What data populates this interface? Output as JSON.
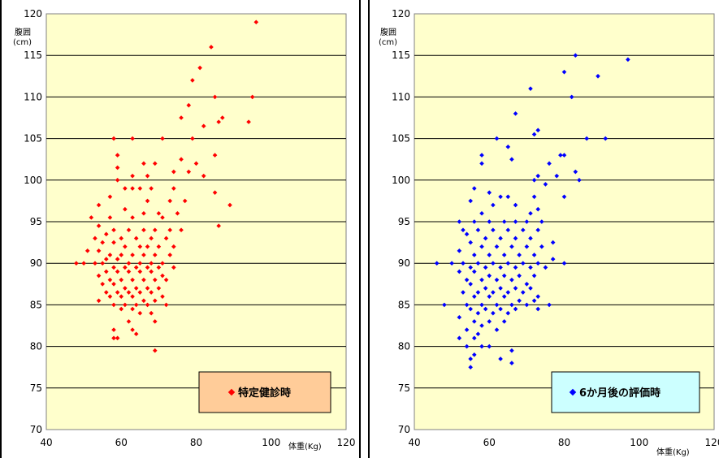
{
  "chart_data": [
    {
      "type": "scatter",
      "ylabel": "腹囲",
      "yunit": "(cm)",
      "xlabel": "体重(Kg)",
      "xlim": [
        40,
        120
      ],
      "ylim": [
        70,
        120
      ],
      "xticks": [
        "40",
        "60",
        "80",
        "100",
        "120"
      ],
      "yticks": [
        "70",
        "75",
        "80",
        "85",
        "90",
        "95",
        "100",
        "105",
        "110",
        "115",
        "120"
      ],
      "plot_background": "#FFFFCC",
      "grid": "horizontal",
      "legend_placement": "bottom-right",
      "legend_background": "#FFCC99",
      "series": [
        {
          "name": "特定健診時",
          "color": "#FF0000",
          "points": [
            [
              96,
              119
            ],
            [
              84,
              116
            ],
            [
              81,
              113.5
            ],
            [
              79,
              112
            ],
            [
              85,
              110
            ],
            [
              95,
              110
            ],
            [
              78,
              109
            ],
            [
              87,
              107.5
            ],
            [
              76,
              107.5
            ],
            [
              86,
              107
            ],
            [
              94,
              107
            ],
            [
              82,
              106.5
            ],
            [
              58,
              105
            ],
            [
              63,
              105
            ],
            [
              71,
              105
            ],
            [
              79,
              105
            ],
            [
              85,
              103
            ],
            [
              59,
              103
            ],
            [
              76,
              102.5
            ],
            [
              66,
              102
            ],
            [
              69,
              102
            ],
            [
              80,
              102
            ],
            [
              59,
              101.5
            ],
            [
              74,
              101
            ],
            [
              78,
              101
            ],
            [
              63,
              100.5
            ],
            [
              67,
              100.5
            ],
            [
              82,
              100.5
            ],
            [
              59,
              100
            ],
            [
              61,
              99
            ],
            [
              63,
              99
            ],
            [
              65,
              99
            ],
            [
              68,
              99
            ],
            [
              74,
              99
            ],
            [
              85,
              98.5
            ],
            [
              57,
              98
            ],
            [
              67,
              97.5
            ],
            [
              73,
              97.5
            ],
            [
              77,
              97.5
            ],
            [
              89,
              97
            ],
            [
              54,
              97
            ],
            [
              61,
              96.5
            ],
            [
              66,
              96
            ],
            [
              70,
              96
            ],
            [
              75,
              96
            ],
            [
              52,
              95.5
            ],
            [
              57,
              95.5
            ],
            [
              63,
              95.5
            ],
            [
              71,
              95.5
            ],
            [
              86,
              94.5
            ],
            [
              54,
              94.5
            ],
            [
              58,
              94
            ],
            [
              62,
              94
            ],
            [
              66,
              94
            ],
            [
              69,
              94
            ],
            [
              73,
              94
            ],
            [
              76,
              94
            ],
            [
              56,
              93.5
            ],
            [
              60,
              93
            ],
            [
              64,
              93
            ],
            [
              68,
              93
            ],
            [
              72,
              93
            ],
            [
              53,
              93
            ],
            [
              55,
              92.5
            ],
            [
              58,
              92.5
            ],
            [
              61,
              92
            ],
            [
              65,
              92
            ],
            [
              67,
              92
            ],
            [
              70,
              92
            ],
            [
              74,
              92
            ],
            [
              51,
              91.5
            ],
            [
              54,
              91.5
            ],
            [
              57,
              91
            ],
            [
              60,
              91
            ],
            [
              63,
              91
            ],
            [
              66,
              91
            ],
            [
              69,
              91
            ],
            [
              73,
              91
            ],
            [
              56,
              90.5
            ],
            [
              59,
              90.5
            ],
            [
              62,
              90
            ],
            [
              65,
              90
            ],
            [
              68,
              90
            ],
            [
              71,
              90
            ],
            [
              48,
              90
            ],
            [
              50,
              90
            ],
            [
              53,
              90
            ],
            [
              55,
              90
            ],
            [
              58,
              89.5
            ],
            [
              61,
              89.5
            ],
            [
              64,
              89.5
            ],
            [
              67,
              89.5
            ],
            [
              70,
              89.5
            ],
            [
              74,
              89.5
            ],
            [
              56,
              89
            ],
            [
              59,
              89
            ],
            [
              62,
              89
            ],
            [
              65,
              89
            ],
            [
              68,
              89
            ],
            [
              71,
              88.5
            ],
            [
              54,
              88.5
            ],
            [
              57,
              88
            ],
            [
              60,
              88
            ],
            [
              63,
              88
            ],
            [
              66,
              88
            ],
            [
              69,
              88
            ],
            [
              72,
              88
            ],
            [
              55,
              87.5
            ],
            [
              58,
              87.5
            ],
            [
              61,
              87
            ],
            [
              64,
              87
            ],
            [
              67,
              87
            ],
            [
              70,
              87
            ],
            [
              56,
              86.5
            ],
            [
              59,
              86.5
            ],
            [
              62,
              86.5
            ],
            [
              65,
              86.5
            ],
            [
              68,
              86.5
            ],
            [
              71,
              86
            ],
            [
              57,
              86
            ],
            [
              60,
              86
            ],
            [
              63,
              86
            ],
            [
              66,
              85.5
            ],
            [
              69,
              85.5
            ],
            [
              54,
              85.5
            ],
            [
              58,
              85
            ],
            [
              61,
              85
            ],
            [
              64,
              85
            ],
            [
              67,
              85
            ],
            [
              72,
              85
            ],
            [
              60,
              84.5
            ],
            [
              63,
              84.5
            ],
            [
              65,
              84
            ],
            [
              68,
              84
            ],
            [
              62,
              83
            ],
            [
              69,
              83
            ],
            [
              58,
              82
            ],
            [
              63,
              82
            ],
            [
              59,
              81
            ],
            [
              58,
              81
            ],
            [
              64,
              81.5
            ],
            [
              69,
              79.5
            ]
          ]
        },
        {
          "name": "6か月後の評価時",
          "color": "#0000FF",
          "points": [
            [
              83,
              115
            ],
            [
              97,
              114.5
            ],
            [
              80,
              113
            ],
            [
              89,
              112.5
            ],
            [
              82,
              110
            ],
            [
              71,
              111
            ],
            [
              67,
              108
            ],
            [
              73,
              106
            ],
            [
              62,
              105
            ],
            [
              86,
              105
            ],
            [
              91,
              105
            ],
            [
              65,
              104
            ],
            [
              72,
              105.5
            ],
            [
              79,
              103
            ],
            [
              58,
              103
            ],
            [
              80,
              103
            ],
            [
              66,
              102.5
            ],
            [
              58,
              102
            ],
            [
              76,
              102
            ],
            [
              83,
              101
            ],
            [
              73,
              100.5
            ],
            [
              78,
              100.5
            ],
            [
              84,
              100
            ],
            [
              72,
              100
            ],
            [
              75,
              99.5
            ],
            [
              56,
              99
            ],
            [
              60,
              98.5
            ],
            [
              63,
              98
            ],
            [
              72,
              98
            ],
            [
              65,
              98
            ],
            [
              80,
              98
            ],
            [
              55,
              97.5
            ],
            [
              61,
              97
            ],
            [
              67,
              97
            ],
            [
              58,
              96
            ],
            [
              73,
              96.5
            ],
            [
              71,
              96
            ],
            [
              52,
              95
            ],
            [
              56,
              95
            ],
            [
              60,
              95
            ],
            [
              64,
              95
            ],
            [
              67,
              95
            ],
            [
              70,
              95
            ],
            [
              74,
              95
            ],
            [
              53,
              94
            ],
            [
              57,
              94
            ],
            [
              61,
              94
            ],
            [
              65,
              94
            ],
            [
              69,
              94
            ],
            [
              73,
              94
            ],
            [
              54,
              93.5
            ],
            [
              59,
              93
            ],
            [
              63,
              93
            ],
            [
              67,
              93
            ],
            [
              71,
              93
            ],
            [
              77,
              92.5
            ],
            [
              55,
              92.5
            ],
            [
              58,
              92
            ],
            [
              62,
              92
            ],
            [
              66,
              92
            ],
            [
              70,
              92
            ],
            [
              74,
              92
            ],
            [
              52,
              91.5
            ],
            [
              56,
              91
            ],
            [
              60,
              91
            ],
            [
              64,
              91
            ],
            [
              68,
              91
            ],
            [
              72,
              91
            ],
            [
              46,
              90
            ],
            [
              50,
              90
            ],
            [
              53,
              90
            ],
            [
              57,
              90
            ],
            [
              61,
              90
            ],
            [
              65,
              90
            ],
            [
              69,
              90
            ],
            [
              73,
              90
            ],
            [
              80,
              90
            ],
            [
              77,
              90.5
            ],
            [
              55,
              89.5
            ],
            [
              59,
              89.5
            ],
            [
              63,
              89.5
            ],
            [
              67,
              89.5
            ],
            [
              71,
              89.5
            ],
            [
              75,
              89.5
            ],
            [
              52,
              89
            ],
            [
              56,
              89
            ],
            [
              60,
              88.5
            ],
            [
              64,
              88.5
            ],
            [
              68,
              88.5
            ],
            [
              72,
              88.5
            ],
            [
              54,
              88
            ],
            [
              58,
              88
            ],
            [
              62,
              88
            ],
            [
              66,
              88
            ],
            [
              70,
              87.5
            ],
            [
              55,
              87.5
            ],
            [
              59,
              87
            ],
            [
              63,
              87
            ],
            [
              67,
              87
            ],
            [
              71,
              87
            ],
            [
              53,
              86.5
            ],
            [
              57,
              86.5
            ],
            [
              61,
              86.5
            ],
            [
              65,
              86.5
            ],
            [
              69,
              86.5
            ],
            [
              73,
              86
            ],
            [
              56,
              86
            ],
            [
              60,
              86
            ],
            [
              64,
              86
            ],
            [
              68,
              85.5
            ],
            [
              72,
              85.5
            ],
            [
              48,
              85
            ],
            [
              54,
              85
            ],
            [
              58,
              85
            ],
            [
              62,
              85
            ],
            [
              66,
              85
            ],
            [
              70,
              85
            ],
            [
              76,
              85
            ],
            [
              55,
              84.5
            ],
            [
              59,
              84.5
            ],
            [
              63,
              84.5
            ],
            [
              67,
              84.5
            ],
            [
              73,
              84.5
            ],
            [
              57,
              84
            ],
            [
              61,
              84
            ],
            [
              65,
              84
            ],
            [
              52,
              83.5
            ],
            [
              56,
              83
            ],
            [
              60,
              83
            ],
            [
              64,
              83
            ],
            [
              58,
              82.5
            ],
            [
              54,
              82
            ],
            [
              62,
              82
            ],
            [
              57,
              81.5
            ],
            [
              52,
              81
            ],
            [
              56,
              81
            ],
            [
              60,
              80
            ],
            [
              58,
              80
            ],
            [
              54,
              80
            ],
            [
              66,
              79.5
            ],
            [
              56,
              79
            ],
            [
              63,
              78.5
            ],
            [
              55,
              78.5
            ],
            [
              66,
              78
            ],
            [
              55,
              77.5
            ]
          ]
        }
      ]
    }
  ]
}
